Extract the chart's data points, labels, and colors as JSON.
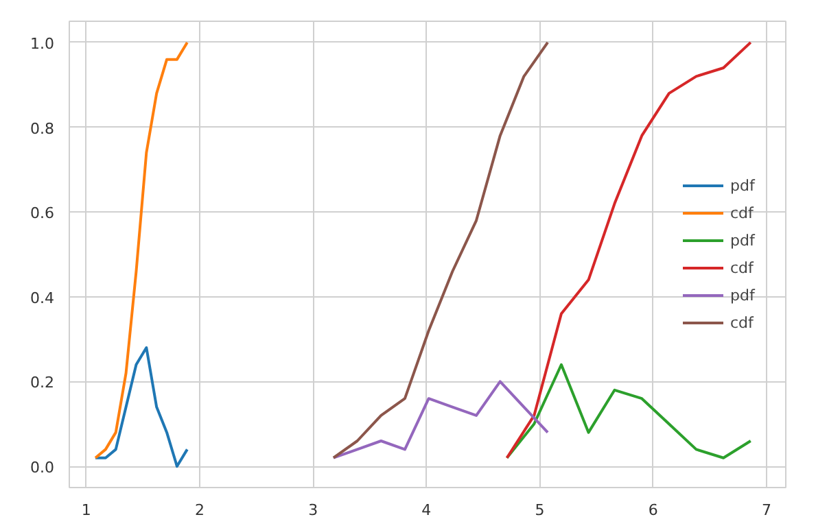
{
  "chart_data": {
    "type": "line",
    "xlim": [
      0.85,
      7.17
    ],
    "ylim": [
      -0.05,
      1.05
    ],
    "xticks": [
      1,
      2,
      3,
      4,
      5,
      6,
      7
    ],
    "yticks": [
      {
        "value": 0,
        "label": "0.0"
      },
      {
        "value": 0.2,
        "label": "0.2"
      },
      {
        "value": 0.4,
        "label": "0.4"
      },
      {
        "value": 0.6,
        "label": "0.6"
      },
      {
        "value": 0.8,
        "label": "0.8"
      },
      {
        "value": 1,
        "label": "1.0"
      }
    ],
    "grid": true,
    "legend": "right",
    "line_style": "solid",
    "marker": "none",
    "series": [
      {
        "name": "pdf",
        "color": "#1f77b4",
        "x": [
          1.08,
          1.17,
          1.26,
          1.35,
          1.44,
          1.53,
          1.62,
          1.71,
          1.8,
          1.89
        ],
        "values": [
          0.02,
          0.02,
          0.04,
          0.14,
          0.24,
          0.28,
          0.14,
          0.08,
          0.0,
          0.04
        ]
      },
      {
        "name": "cdf",
        "color": "#ff7f0e",
        "x": [
          1.08,
          1.17,
          1.26,
          1.35,
          1.44,
          1.53,
          1.62,
          1.71,
          1.8,
          1.89
        ],
        "values": [
          0.02,
          0.04,
          0.08,
          0.22,
          0.46,
          0.74,
          0.88,
          0.96,
          0.96,
          1.0
        ]
      },
      {
        "name": "pdf",
        "color": "#2ca02c",
        "x": [
          4.71,
          4.95,
          5.19,
          5.43,
          5.66,
          5.9,
          6.14,
          6.38,
          6.62,
          6.86
        ],
        "values": [
          0.02,
          0.1,
          0.24,
          0.08,
          0.18,
          0.16,
          0.1,
          0.04,
          0.02,
          0.06
        ]
      },
      {
        "name": "cdf",
        "color": "#d62728",
        "x": [
          4.71,
          4.95,
          5.19,
          5.43,
          5.66,
          5.9,
          6.14,
          6.38,
          6.62,
          6.86
        ],
        "values": [
          0.02,
          0.12,
          0.36,
          0.44,
          0.62,
          0.78,
          0.88,
          0.92,
          0.94,
          1.0
        ]
      },
      {
        "name": "pdf",
        "color": "#9467bd",
        "x": [
          3.18,
          3.39,
          3.6,
          3.81,
          4.02,
          4.23,
          4.44,
          4.65,
          4.86,
          5.07
        ],
        "values": [
          0.02,
          0.04,
          0.06,
          0.04,
          0.16,
          0.14,
          0.12,
          0.2,
          0.14,
          0.08
        ]
      },
      {
        "name": "cdf",
        "color": "#8c564b",
        "x": [
          3.18,
          3.39,
          3.6,
          3.81,
          4.02,
          4.23,
          4.44,
          4.65,
          4.86,
          5.07
        ],
        "values": [
          0.02,
          0.06,
          0.12,
          0.16,
          0.32,
          0.46,
          0.58,
          0.78,
          0.92,
          1.0
        ]
      }
    ]
  }
}
